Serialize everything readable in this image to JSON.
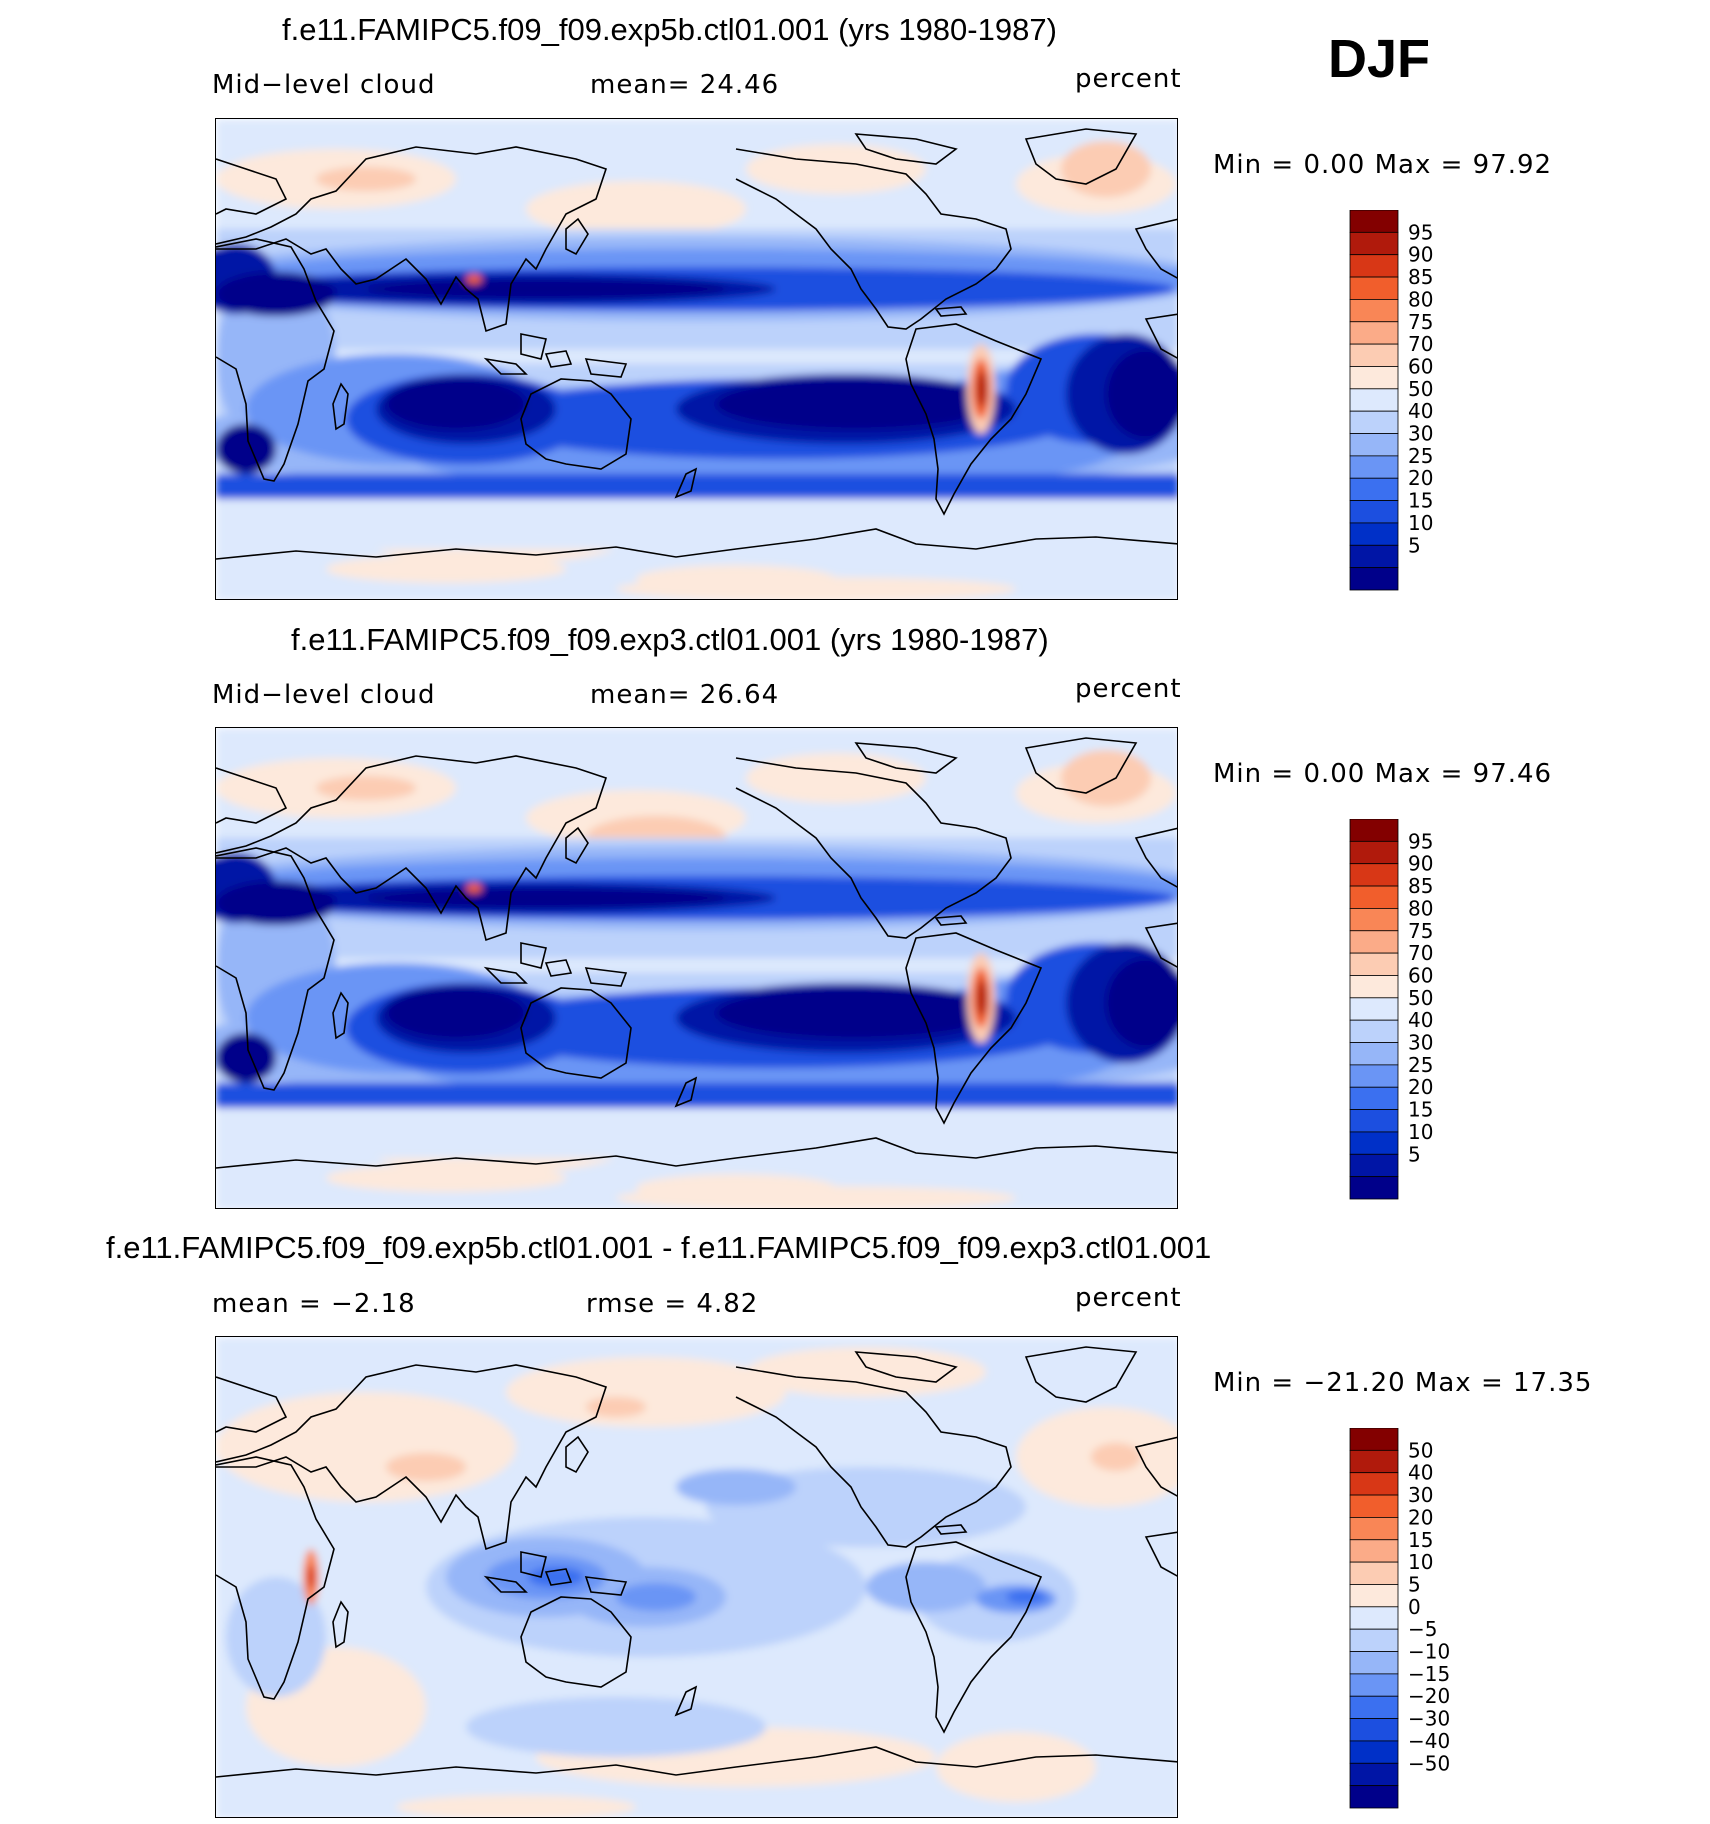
{
  "season": "DJF",
  "colors": {
    "abs_scale": [
      "#00008a",
      "#0015a6",
      "#0030c8",
      "#1c4fe0",
      "#3b70f0",
      "#6a95f5",
      "#96b6f8",
      "#bcd2fb",
      "#dde9fd",
      "#fde9dc",
      "#fcccb3",
      "#fbab88",
      "#f98656",
      "#f15e2c",
      "#d83716",
      "#b01a0c",
      "#830000"
    ],
    "diff_scale": [
      "#00008a",
      "#0015a6",
      "#0030c8",
      "#1c4fe0",
      "#3b70f0",
      "#6a95f5",
      "#96b6f8",
      "#bcd2fb",
      "#dde9fd",
      "#fde9dc",
      "#fcccb3",
      "#fbab88",
      "#f98656",
      "#f15e2c",
      "#d83716",
      "#b01a0c",
      "#830000"
    ],
    "coast": "#000000"
  },
  "chart_data": [
    {
      "type": "heatmap",
      "title": "f.e11.FAMIPC5.f09_f09.exp5b.ctl01.001 (yrs 1980-1987)",
      "variable": "Mid−level cloud",
      "mean_text": "mean=   24.46",
      "units": "percent",
      "min_max_text": "Min =    0.00 Max =   97.92",
      "min": 0.0,
      "max": 97.92,
      "mean": 24.46,
      "colorbar_levels": [
        "95",
        "90",
        "85",
        "80",
        "75",
        "70",
        "60",
        "50",
        "40",
        "30",
        "25",
        "20",
        "15",
        "10",
        "5"
      ]
    },
    {
      "type": "heatmap",
      "title": "f.e11.FAMIPC5.f09_f09.exp3.ctl01.001 (yrs 1980-1987)",
      "variable": "Mid−level cloud",
      "mean_text": "mean=   26.64",
      "units": "percent",
      "min_max_text": "Min =    0.00 Max =   97.46",
      "min": 0.0,
      "max": 97.46,
      "mean": 26.64,
      "colorbar_levels": [
        "95",
        "90",
        "85",
        "80",
        "75",
        "70",
        "60",
        "50",
        "40",
        "30",
        "25",
        "20",
        "15",
        "10",
        "5"
      ]
    },
    {
      "type": "heatmap",
      "title": "f.e11.FAMIPC5.f09_f09.exp5b.ctl01.001 - f.e11.FAMIPC5.f09_f09.exp3.ctl01.001",
      "mean_text": "mean =   −2.18",
      "rmse_text": "rmse =     4.82",
      "units": "percent",
      "min_max_text": "Min = −21.20 Max =   17.35",
      "min": -21.2,
      "max": 17.35,
      "mean": -2.18,
      "rmse": 4.82,
      "colorbar_levels": [
        "50",
        "40",
        "30",
        "20",
        "15",
        "10",
        "5",
        "0",
        "−5",
        "−10",
        "−15",
        "−20",
        "−30",
        "−40",
        "−50"
      ]
    }
  ]
}
